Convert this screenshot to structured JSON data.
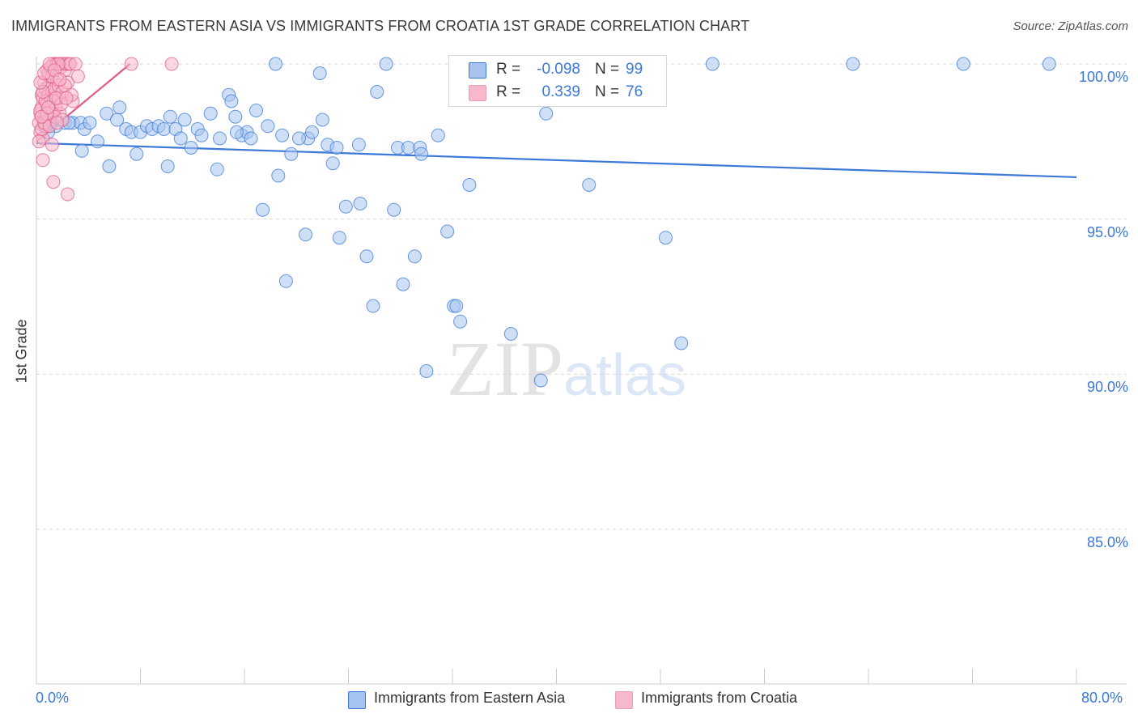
{
  "title": "IMMIGRANTS FROM EASTERN ASIA VS IMMIGRANTS FROM CROATIA 1ST GRADE CORRELATION CHART",
  "source": "Source: ZipAtlas.com",
  "watermark": {
    "zip": "ZIP",
    "atlas": "atlas"
  },
  "legend_top": {
    "rows": [
      {
        "r_label": "R =",
        "r_value": "-0.098",
        "n_label": "N =",
        "n_value": "99",
        "color": "#a7c4ee"
      },
      {
        "r_label": "R =",
        "r_value": "0.339",
        "n_label": "N =",
        "n_value": "76",
        "color": "#f7b8cb"
      }
    ]
  },
  "chart_data": {
    "type": "scatter",
    "title": "IMMIGRANTS FROM EASTERN ASIA VS IMMIGRANTS FROM CROATIA 1ST GRADE CORRELATION CHART",
    "xlabel": "",
    "ylabel": "1st Grade",
    "xlim": [
      0,
      80
    ],
    "ylim": [
      80.5,
      100.7
    ],
    "x_tick_labels": [
      "0.0%",
      "80.0%"
    ],
    "y_ticks": [
      85,
      90,
      95,
      100
    ],
    "y_tick_labels": [
      "85.0%",
      "90.0%",
      "95.0%",
      "100.0%"
    ],
    "grid": true,
    "legend_position": "bottom-center",
    "series": [
      {
        "name": "Immigrants from Eastern Asia",
        "color": "#3b78d8",
        "fill": "#a7c4ee",
        "trend": {
          "x": [
            0,
            80
          ],
          "y": [
            97.45,
            96.35
          ]
        },
        "points": [
          [
            0.6,
            98.0
          ],
          [
            0.8,
            98.2
          ],
          [
            1.0,
            98.0
          ],
          [
            1.2,
            98.1
          ],
          [
            1.5,
            98.0
          ],
          [
            2.2,
            98.1
          ],
          [
            2.8,
            98.1
          ],
          [
            3.4,
            98.1
          ],
          [
            3.7,
            97.9
          ],
          [
            4.7,
            97.5
          ],
          [
            5.4,
            98.4
          ],
          [
            3.5,
            97.2
          ],
          [
            5.6,
            96.7
          ],
          [
            6.2,
            98.2
          ],
          [
            6.4,
            98.6
          ],
          [
            6.9,
            97.9
          ],
          [
            7.3,
            97.8
          ],
          [
            7.7,
            97.1
          ],
          [
            8.0,
            97.8
          ],
          [
            8.5,
            98.0
          ],
          [
            8.9,
            97.9
          ],
          [
            9.4,
            98.0
          ],
          [
            9.8,
            97.9
          ],
          [
            10.1,
            96.7
          ],
          [
            10.3,
            98.3
          ],
          [
            10.7,
            97.9
          ],
          [
            11.1,
            97.6
          ],
          [
            11.4,
            98.2
          ],
          [
            11.9,
            97.3
          ],
          [
            12.4,
            97.9
          ],
          [
            12.7,
            97.7
          ],
          [
            13.4,
            98.4
          ],
          [
            13.9,
            96.6
          ],
          [
            14.1,
            97.6
          ],
          [
            14.8,
            99.0
          ],
          [
            15.0,
            98.8
          ],
          [
            15.3,
            98.3
          ],
          [
            15.8,
            97.7
          ],
          [
            16.2,
            97.8
          ],
          [
            16.5,
            97.6
          ],
          [
            16.9,
            98.5
          ],
          [
            17.4,
            95.3
          ],
          [
            17.8,
            98.0
          ],
          [
            18.4,
            100.0
          ],
          [
            18.6,
            96.4
          ],
          [
            18.9,
            97.7
          ],
          [
            19.2,
            93.0
          ],
          [
            19.6,
            97.1
          ],
          [
            20.7,
            94.5
          ],
          [
            20.9,
            97.6
          ],
          [
            21.2,
            97.8
          ],
          [
            21.8,
            99.7
          ],
          [
            22.0,
            98.2
          ],
          [
            22.4,
            97.4
          ],
          [
            22.8,
            96.8
          ],
          [
            23.1,
            97.3
          ],
          [
            23.3,
            94.4
          ],
          [
            23.8,
            95.4
          ],
          [
            24.8,
            97.4
          ],
          [
            24.9,
            95.5
          ],
          [
            25.4,
            93.8
          ],
          [
            25.9,
            92.2
          ],
          [
            26.2,
            99.1
          ],
          [
            26.9,
            100.0
          ],
          [
            27.5,
            95.3
          ],
          [
            27.8,
            97.3
          ],
          [
            28.2,
            92.9
          ],
          [
            28.6,
            97.3
          ],
          [
            29.1,
            93.8
          ],
          [
            29.5,
            97.3
          ],
          [
            29.6,
            97.1
          ],
          [
            30.0,
            90.1
          ],
          [
            30.9,
            97.7
          ],
          [
            31.6,
            94.6
          ],
          [
            32.1,
            92.2
          ],
          [
            32.3,
            92.2
          ],
          [
            32.6,
            91.7
          ],
          [
            33.3,
            96.1
          ],
          [
            34.2,
            100.0
          ],
          [
            36.5,
            91.3
          ],
          [
            37.2,
            100.0
          ],
          [
            38.8,
            89.8
          ],
          [
            39.2,
            98.4
          ],
          [
            42.5,
            96.1
          ],
          [
            43.3,
            100.0
          ],
          [
            48.4,
            94.4
          ],
          [
            49.6,
            91.0
          ],
          [
            52.0,
            100.0
          ],
          [
            62.8,
            100.0
          ],
          [
            71.3,
            100.0
          ],
          [
            77.9,
            100.0
          ],
          [
            0.9,
            97.8
          ],
          [
            1.3,
            98.2
          ],
          [
            2.5,
            98.1
          ],
          [
            4.1,
            98.1
          ],
          [
            15.4,
            97.8
          ],
          [
            20.2,
            97.6
          ],
          [
            33.5,
            100.0
          ],
          [
            41.6,
            100.0
          ]
        ]
      },
      {
        "name": "Immigrants from Croatia",
        "color": "#e05a8a",
        "fill": "#f7b8cb",
        "trend": {
          "x": [
            0,
            7.2
          ],
          "y": [
            97.5,
            100.0
          ]
        },
        "points": [
          [
            0.2,
            98.1
          ],
          [
            0.3,
            97.8
          ],
          [
            0.3,
            98.4
          ],
          [
            0.4,
            99.0
          ],
          [
            0.4,
            98.6
          ],
          [
            0.5,
            97.6
          ],
          [
            0.5,
            98.9
          ],
          [
            0.6,
            99.4
          ],
          [
            0.6,
            98.2
          ],
          [
            0.7,
            99.2
          ],
          [
            0.7,
            98.0
          ],
          [
            0.8,
            99.8
          ],
          [
            0.8,
            98.7
          ],
          [
            0.9,
            99.0
          ],
          [
            0.9,
            98.3
          ],
          [
            1.0,
            99.3
          ],
          [
            1.0,
            99.6
          ],
          [
            1.1,
            98.9
          ],
          [
            1.1,
            98.5
          ],
          [
            1.2,
            99.1
          ],
          [
            1.2,
            97.4
          ],
          [
            1.3,
            100.0
          ],
          [
            1.3,
            98.8
          ],
          [
            1.4,
            99.2
          ],
          [
            1.5,
            100.0
          ],
          [
            1.5,
            98.6
          ],
          [
            1.6,
            99.5
          ],
          [
            1.6,
            100.0
          ],
          [
            1.7,
            98.9
          ],
          [
            1.7,
            99.3
          ],
          [
            1.8,
            100.0
          ],
          [
            1.8,
            98.4
          ],
          [
            1.9,
            99.9
          ],
          [
            2.0,
            100.0
          ],
          [
            2.0,
            99.1
          ],
          [
            2.1,
            100.0
          ],
          [
            2.2,
            99.8
          ],
          [
            2.3,
            100.0
          ],
          [
            2.4,
            99.4
          ],
          [
            2.5,
            100.0
          ],
          [
            2.6,
            100.0
          ],
          [
            2.8,
            98.8
          ],
          [
            3.0,
            100.0
          ],
          [
            3.2,
            99.6
          ],
          [
            0.5,
            96.9
          ],
          [
            1.3,
            96.2
          ],
          [
            2.4,
            95.8
          ],
          [
            7.3,
            100.0
          ],
          [
            10.4,
            100.0
          ],
          [
            0.3,
            98.5
          ],
          [
            0.4,
            97.9
          ],
          [
            0.6,
            98.1
          ],
          [
            0.7,
            98.8
          ],
          [
            0.9,
            99.7
          ],
          [
            1.0,
            98.0
          ],
          [
            1.1,
            99.9
          ],
          [
            1.4,
            98.3
          ],
          [
            1.9,
            98.7
          ],
          [
            2.2,
            99.3
          ],
          [
            0.2,
            97.5
          ],
          [
            0.5,
            99.1
          ],
          [
            0.8,
            98.4
          ],
          [
            1.2,
            99.6
          ],
          [
            1.5,
            98.9
          ],
          [
            1.7,
            100.0
          ],
          [
            2.0,
            98.2
          ],
          [
            2.7,
            99.0
          ],
          [
            0.3,
            99.4
          ],
          [
            0.6,
            99.7
          ],
          [
            1.0,
            100.0
          ],
          [
            1.4,
            99.8
          ],
          [
            1.8,
            99.5
          ],
          [
            2.3,
            98.9
          ],
          [
            0.4,
            98.3
          ],
          [
            0.9,
            98.6
          ],
          [
            1.6,
            98.1
          ]
        ]
      }
    ]
  }
}
